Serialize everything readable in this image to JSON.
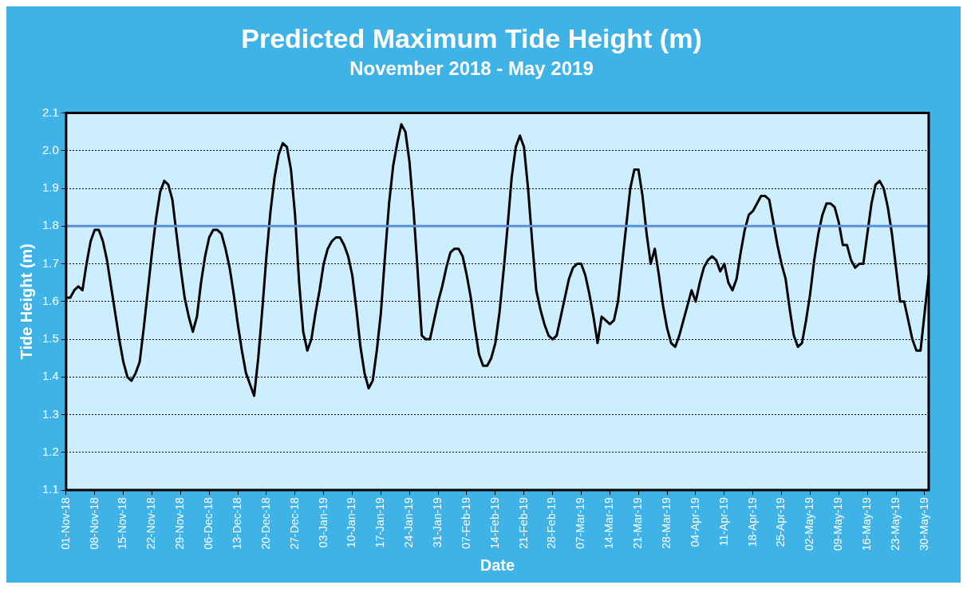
{
  "chart_data": {
    "type": "line",
    "title": "Predicted Maximum Tide Height (m)",
    "subtitle": "November 2018 - May 2019",
    "xlabel": "Date",
    "ylabel": "Tide Height (m)",
    "categories": [
      "01-Nov-18",
      null,
      null,
      null,
      null,
      null,
      null,
      "08-Nov-18",
      null,
      null,
      null,
      null,
      null,
      null,
      "15-Nov-18",
      null,
      null,
      null,
      null,
      null,
      null,
      "22-Nov-18",
      null,
      null,
      null,
      null,
      null,
      null,
      "29-Nov-18",
      null,
      null,
      null,
      null,
      null,
      null,
      "06-Dec-18",
      null,
      null,
      null,
      null,
      null,
      null,
      "13-Dec-18",
      null,
      null,
      null,
      null,
      null,
      null,
      "20-Dec-18",
      null,
      null,
      null,
      null,
      null,
      null,
      "27-Dec-18",
      null,
      null,
      null,
      null,
      null,
      null,
      "03-Jan-19",
      null,
      null,
      null,
      null,
      null,
      null,
      "10-Jan-19",
      null,
      null,
      null,
      null,
      null,
      null,
      "17-Jan-19",
      null,
      null,
      null,
      null,
      null,
      null,
      "24-Jan-19",
      null,
      null,
      null,
      null,
      null,
      null,
      "31-Jan-19",
      null,
      null,
      null,
      null,
      null,
      null,
      "07-Feb-19",
      null,
      null,
      null,
      null,
      null,
      null,
      "14-Feb-19",
      null,
      null,
      null,
      null,
      null,
      null,
      "21-Feb-19",
      null,
      null,
      null,
      null,
      null,
      null,
      "28-Feb-19",
      null,
      null,
      null,
      null,
      null,
      null,
      "07-Mar-19",
      null,
      null,
      null,
      null,
      null,
      null,
      "14-Mar-19",
      null,
      null,
      null,
      null,
      null,
      null,
      "21-Mar-19",
      null,
      null,
      null,
      null,
      null,
      null,
      "28-Mar-19",
      null,
      null,
      null,
      null,
      null,
      null,
      "04-Apr-19",
      null,
      null,
      null,
      null,
      null,
      null,
      "11-Apr-19",
      null,
      null,
      null,
      null,
      null,
      null,
      "18-Apr-19",
      null,
      null,
      null,
      null,
      null,
      null,
      "25-Apr-19",
      null,
      null,
      null,
      null,
      null,
      null,
      "02-May-19",
      null,
      null,
      null,
      null,
      null,
      null,
      "09-May-19",
      null,
      null,
      null,
      null,
      null,
      null,
      "16-May-19",
      null,
      null,
      null,
      null,
      null,
      null,
      "23-May-19",
      null,
      null,
      null,
      null,
      null,
      null,
      "30-May-19",
      null
    ],
    "series": [
      {
        "color": "#000000",
        "values": [
          1.61,
          1.61,
          1.63,
          1.64,
          1.63,
          1.7,
          1.76,
          1.79,
          1.79,
          1.76,
          1.71,
          1.64,
          1.57,
          1.5,
          1.44,
          1.4,
          1.39,
          1.41,
          1.44,
          1.53,
          1.63,
          1.73,
          1.82,
          1.89,
          1.92,
          1.91,
          1.87,
          1.78,
          1.69,
          1.61,
          1.56,
          1.52,
          1.56,
          1.65,
          1.72,
          1.77,
          1.79,
          1.79,
          1.78,
          1.74,
          1.69,
          1.62,
          1.54,
          1.47,
          1.41,
          1.38,
          1.35,
          1.45,
          1.58,
          1.72,
          1.84,
          1.93,
          1.99,
          2.02,
          2.01,
          1.95,
          1.83,
          1.65,
          1.52,
          1.47,
          1.5,
          1.57,
          1.63,
          1.7,
          1.74,
          1.76,
          1.77,
          1.77,
          1.75,
          1.72,
          1.67,
          1.58,
          1.48,
          1.41,
          1.37,
          1.39,
          1.47,
          1.57,
          1.72,
          1.86,
          1.96,
          2.02,
          2.07,
          2.05,
          1.97,
          1.84,
          1.68,
          1.51,
          1.5,
          1.5,
          1.55,
          1.6,
          1.64,
          1.69,
          1.73,
          1.74,
          1.74,
          1.72,
          1.67,
          1.61,
          1.53,
          1.46,
          1.43,
          1.43,
          1.45,
          1.49,
          1.57,
          1.68,
          1.8,
          1.93,
          2.01,
          2.04,
          2.01,
          1.9,
          1.76,
          1.63,
          1.58,
          1.54,
          1.51,
          1.5,
          1.51,
          1.56,
          1.61,
          1.66,
          1.69,
          1.7,
          1.7,
          1.67,
          1.62,
          1.56,
          1.49,
          1.56,
          1.55,
          1.54,
          1.55,
          1.6,
          1.7,
          1.8,
          1.9,
          1.95,
          1.95,
          1.88,
          1.78,
          1.7,
          1.74,
          1.67,
          1.59,
          1.53,
          1.49,
          1.48,
          1.51,
          1.55,
          1.59,
          1.63,
          1.6,
          1.65,
          1.69,
          1.71,
          1.72,
          1.71,
          1.68,
          1.7,
          1.65,
          1.63,
          1.66,
          1.73,
          1.79,
          1.83,
          1.84,
          1.86,
          1.88,
          1.88,
          1.87,
          1.81,
          1.75,
          1.7,
          1.66,
          1.58,
          1.51,
          1.48,
          1.49,
          1.55,
          1.62,
          1.71,
          1.78,
          1.83,
          1.86,
          1.86,
          1.85,
          1.81,
          1.75,
          1.75,
          1.71,
          1.69,
          1.7,
          1.7,
          1.78,
          1.86,
          1.91,
          1.92,
          1.9,
          1.85,
          1.78,
          1.69,
          1.6,
          1.6,
          1.55,
          1.5,
          1.47,
          1.47,
          1.57,
          1.67
        ]
      }
    ],
    "ylim": [
      1.1,
      2.1
    ],
    "yticks": [
      1.1,
      1.2,
      1.3,
      1.4,
      1.5,
      1.6,
      1.7,
      1.8,
      1.9,
      {
        "value": 2,
        "label": "2.0"
      },
      2.1
    ],
    "ref_lines": [
      {
        "axis": "y",
        "value": 1.8,
        "color": "#5b8fd6"
      }
    ],
    "grid": "y",
    "legend": false,
    "marker": "none",
    "line_style": "solid"
  }
}
